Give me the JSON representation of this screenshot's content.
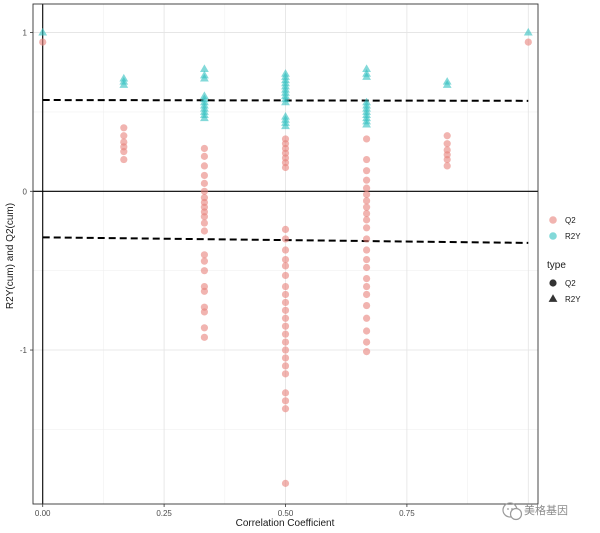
{
  "chart_data": {
    "type": "scatter",
    "xlabel": "Correlation Coefficient",
    "ylabel": "R2Y(cum) and Q2(cum)",
    "xlim": [
      -0.02,
      1.02
    ],
    "ylim": [
      -1.97,
      1.18
    ],
    "x_ticks": [
      0.0,
      0.25,
      0.5,
      0.75
    ],
    "x_tick_labels": [
      "0.00",
      "0.25",
      "0.50",
      "0.75"
    ],
    "y_ticks": [
      1,
      0,
      -1
    ],
    "y_tick_labels": [
      "1",
      "0",
      "-1"
    ],
    "grid": true,
    "background": "#ffffff",
    "panel_border": true,
    "reference_lines": [
      {
        "orientation": "vertical",
        "x": 0.0,
        "style": "solid"
      },
      {
        "orientation": "horizontal",
        "y": 0.0,
        "style": "solid"
      }
    ],
    "fitted_lines": [
      {
        "style": "dashed",
        "from": [
          0.0,
          0.575
        ],
        "to": [
          1.0,
          0.57
        ]
      },
      {
        "style": "dashed",
        "from": [
          0.0,
          -0.29
        ],
        "to": [
          1.0,
          -0.325
        ]
      }
    ],
    "legend_placement": "right",
    "legend": {
      "color_title": "",
      "color_entries": [
        {
          "label": "Q2",
          "color": "#e8827c"
        },
        {
          "label": "R2Y",
          "color": "#30c0c0"
        }
      ],
      "shape_title": "type",
      "shape_entries": [
        {
          "label": "Q2",
          "shape": "circle"
        },
        {
          "label": "R2Y",
          "shape": "triangle"
        }
      ]
    },
    "series": [
      {
        "name": "R2Y",
        "color": "#30c0c0",
        "shape": "triangle",
        "points": [
          [
            0.0,
            1.0
          ],
          [
            0.167,
            0.71
          ],
          [
            0.167,
            0.69
          ],
          [
            0.167,
            0.67
          ],
          [
            0.333,
            0.77
          ],
          [
            0.333,
            0.73
          ],
          [
            0.333,
            0.71
          ],
          [
            0.333,
            0.6
          ],
          [
            0.333,
            0.58
          ],
          [
            0.333,
            0.56
          ],
          [
            0.333,
            0.54
          ],
          [
            0.333,
            0.52
          ],
          [
            0.333,
            0.5
          ],
          [
            0.333,
            0.48
          ],
          [
            0.333,
            0.46
          ],
          [
            0.5,
            0.74
          ],
          [
            0.5,
            0.72
          ],
          [
            0.5,
            0.7
          ],
          [
            0.5,
            0.68
          ],
          [
            0.5,
            0.66
          ],
          [
            0.5,
            0.64
          ],
          [
            0.5,
            0.62
          ],
          [
            0.5,
            0.6
          ],
          [
            0.5,
            0.58
          ],
          [
            0.5,
            0.56
          ],
          [
            0.5,
            0.47
          ],
          [
            0.5,
            0.45
          ],
          [
            0.5,
            0.43
          ],
          [
            0.5,
            0.41
          ],
          [
            0.667,
            0.77
          ],
          [
            0.667,
            0.74
          ],
          [
            0.667,
            0.72
          ],
          [
            0.667,
            0.56
          ],
          [
            0.667,
            0.54
          ],
          [
            0.667,
            0.52
          ],
          [
            0.667,
            0.5
          ],
          [
            0.667,
            0.48
          ],
          [
            0.667,
            0.46
          ],
          [
            0.667,
            0.44
          ],
          [
            0.667,
            0.42
          ],
          [
            0.833,
            0.69
          ],
          [
            0.833,
            0.67
          ],
          [
            1.0,
            1.0
          ]
        ]
      },
      {
        "name": "Q2",
        "color": "#e8827c",
        "shape": "circle",
        "points": [
          [
            0.0,
            0.94
          ],
          [
            0.167,
            0.4
          ],
          [
            0.167,
            0.35
          ],
          [
            0.167,
            0.31
          ],
          [
            0.167,
            0.28
          ],
          [
            0.167,
            0.25
          ],
          [
            0.167,
            0.2
          ],
          [
            0.333,
            0.27
          ],
          [
            0.333,
            0.22
          ],
          [
            0.333,
            0.16
          ],
          [
            0.333,
            0.1
          ],
          [
            0.333,
            0.05
          ],
          [
            0.333,
            0.0
          ],
          [
            0.333,
            -0.04
          ],
          [
            0.333,
            -0.07
          ],
          [
            0.333,
            -0.1
          ],
          [
            0.333,
            -0.13
          ],
          [
            0.333,
            -0.16
          ],
          [
            0.333,
            -0.2
          ],
          [
            0.333,
            -0.25
          ],
          [
            0.333,
            -0.4
          ],
          [
            0.333,
            -0.44
          ],
          [
            0.333,
            -0.5
          ],
          [
            0.333,
            -0.6
          ],
          [
            0.333,
            -0.63
          ],
          [
            0.333,
            -0.73
          ],
          [
            0.333,
            -0.76
          ],
          [
            0.333,
            -0.86
          ],
          [
            0.333,
            -0.92
          ],
          [
            0.5,
            0.33
          ],
          [
            0.5,
            0.3
          ],
          [
            0.5,
            0.27
          ],
          [
            0.5,
            0.24
          ],
          [
            0.5,
            0.21
          ],
          [
            0.5,
            0.18
          ],
          [
            0.5,
            0.15
          ],
          [
            0.5,
            -0.24
          ],
          [
            0.5,
            -0.3
          ],
          [
            0.5,
            -0.37
          ],
          [
            0.5,
            -0.43
          ],
          [
            0.5,
            -0.47
          ],
          [
            0.5,
            -0.53
          ],
          [
            0.5,
            -0.6
          ],
          [
            0.5,
            -0.65
          ],
          [
            0.5,
            -0.7
          ],
          [
            0.5,
            -0.75
          ],
          [
            0.5,
            -0.8
          ],
          [
            0.5,
            -0.85
          ],
          [
            0.5,
            -0.9
          ],
          [
            0.5,
            -0.95
          ],
          [
            0.5,
            -1.0
          ],
          [
            0.5,
            -1.05
          ],
          [
            0.5,
            -1.1
          ],
          [
            0.5,
            -1.15
          ],
          [
            0.5,
            -1.27
          ],
          [
            0.5,
            -1.32
          ],
          [
            0.5,
            -1.37
          ],
          [
            0.5,
            -1.84
          ],
          [
            0.667,
            0.33
          ],
          [
            0.667,
            0.2
          ],
          [
            0.667,
            0.13
          ],
          [
            0.667,
            0.07
          ],
          [
            0.667,
            0.02
          ],
          [
            0.667,
            -0.02
          ],
          [
            0.667,
            -0.06
          ],
          [
            0.667,
            -0.1
          ],
          [
            0.667,
            -0.14
          ],
          [
            0.667,
            -0.18
          ],
          [
            0.667,
            -0.23
          ],
          [
            0.667,
            -0.3
          ],
          [
            0.667,
            -0.37
          ],
          [
            0.667,
            -0.43
          ],
          [
            0.667,
            -0.48
          ],
          [
            0.667,
            -0.55
          ],
          [
            0.667,
            -0.6
          ],
          [
            0.667,
            -0.65
          ],
          [
            0.667,
            -0.72
          ],
          [
            0.667,
            -0.8
          ],
          [
            0.667,
            -0.88
          ],
          [
            0.667,
            -0.95
          ],
          [
            0.667,
            -1.01
          ],
          [
            0.833,
            0.35
          ],
          [
            0.833,
            0.3
          ],
          [
            0.833,
            0.26
          ],
          [
            0.833,
            0.23
          ],
          [
            0.833,
            0.2
          ],
          [
            0.833,
            0.16
          ],
          [
            1.0,
            0.94
          ]
        ]
      }
    ]
  },
  "watermark": {
    "text": "美格基因",
    "icon": "wechat-icon"
  }
}
